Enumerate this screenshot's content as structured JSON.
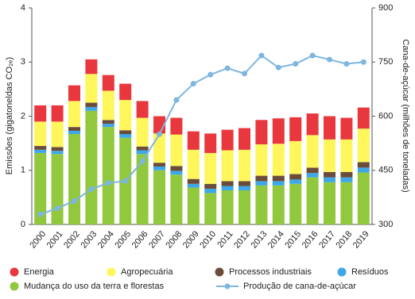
{
  "chart_data": {
    "type": "bar",
    "stacked": true,
    "y_label": "Emissões (gigatoneldas CO₂ₑ)",
    "y2_label": "Cana-de-açúcar (milhões de toneladas)",
    "categories": [
      "2000",
      "2001",
      "2002",
      "2003",
      "2004",
      "2005",
      "2006",
      "2007",
      "2008",
      "2009",
      "2010",
      "2011",
      "2012",
      "2013",
      "2014",
      "2015",
      "2016",
      "2017",
      "2018",
      "2019"
    ],
    "series": [
      {
        "name": "Mudança do uso da terra e florestas",
        "color": "#92c83e",
        "values": [
          1.32,
          1.3,
          1.67,
          2.1,
          1.8,
          1.6,
          1.3,
          1.0,
          0.92,
          0.68,
          0.58,
          0.63,
          0.63,
          0.72,
          0.72,
          0.75,
          0.87,
          0.78,
          0.78,
          0.96
        ]
      },
      {
        "name": "Resíduos",
        "color": "#3ea8e6",
        "values": [
          0.06,
          0.06,
          0.06,
          0.07,
          0.06,
          0.07,
          0.07,
          0.07,
          0.07,
          0.07,
          0.08,
          0.08,
          0.08,
          0.08,
          0.08,
          0.08,
          0.08,
          0.09,
          0.09,
          0.09
        ]
      },
      {
        "name": "Processos industriais",
        "color": "#6b4c3b",
        "values": [
          0.07,
          0.07,
          0.07,
          0.08,
          0.07,
          0.07,
          0.07,
          0.07,
          0.09,
          0.09,
          0.09,
          0.09,
          0.09,
          0.1,
          0.1,
          0.1,
          0.1,
          0.1,
          0.1,
          0.1
        ]
      },
      {
        "name": "Agropecuária",
        "color": "#fef65b",
        "values": [
          0.45,
          0.47,
          0.48,
          0.53,
          0.54,
          0.56,
          0.53,
          0.54,
          0.58,
          0.54,
          0.57,
          0.57,
          0.58,
          0.58,
          0.59,
          0.61,
          0.6,
          0.6,
          0.6,
          0.62
        ]
      },
      {
        "name": "Energia",
        "color": "#e8383d",
        "values": [
          0.3,
          0.3,
          0.29,
          0.27,
          0.29,
          0.3,
          0.31,
          0.32,
          0.31,
          0.34,
          0.36,
          0.38,
          0.4,
          0.45,
          0.47,
          0.44,
          0.4,
          0.43,
          0.4,
          0.39
        ]
      },
      {
        "name": "Produção de cana-de-açúcar",
        "color": "#7eb6e0",
        "axis": "y2",
        "values": [
          328,
          345,
          365,
          398,
          415,
          420,
          475,
          550,
          645,
          690,
          715,
          733,
          718,
          768,
          735,
          745,
          768,
          757,
          745,
          750
        ]
      }
    ],
    "ylim": [
      0,
      4
    ],
    "yticks": [
      0,
      1,
      2,
      3,
      4
    ],
    "y2lim": [
      300,
      900
    ],
    "y2ticks": [
      300,
      450,
      600,
      750,
      900
    ]
  }
}
